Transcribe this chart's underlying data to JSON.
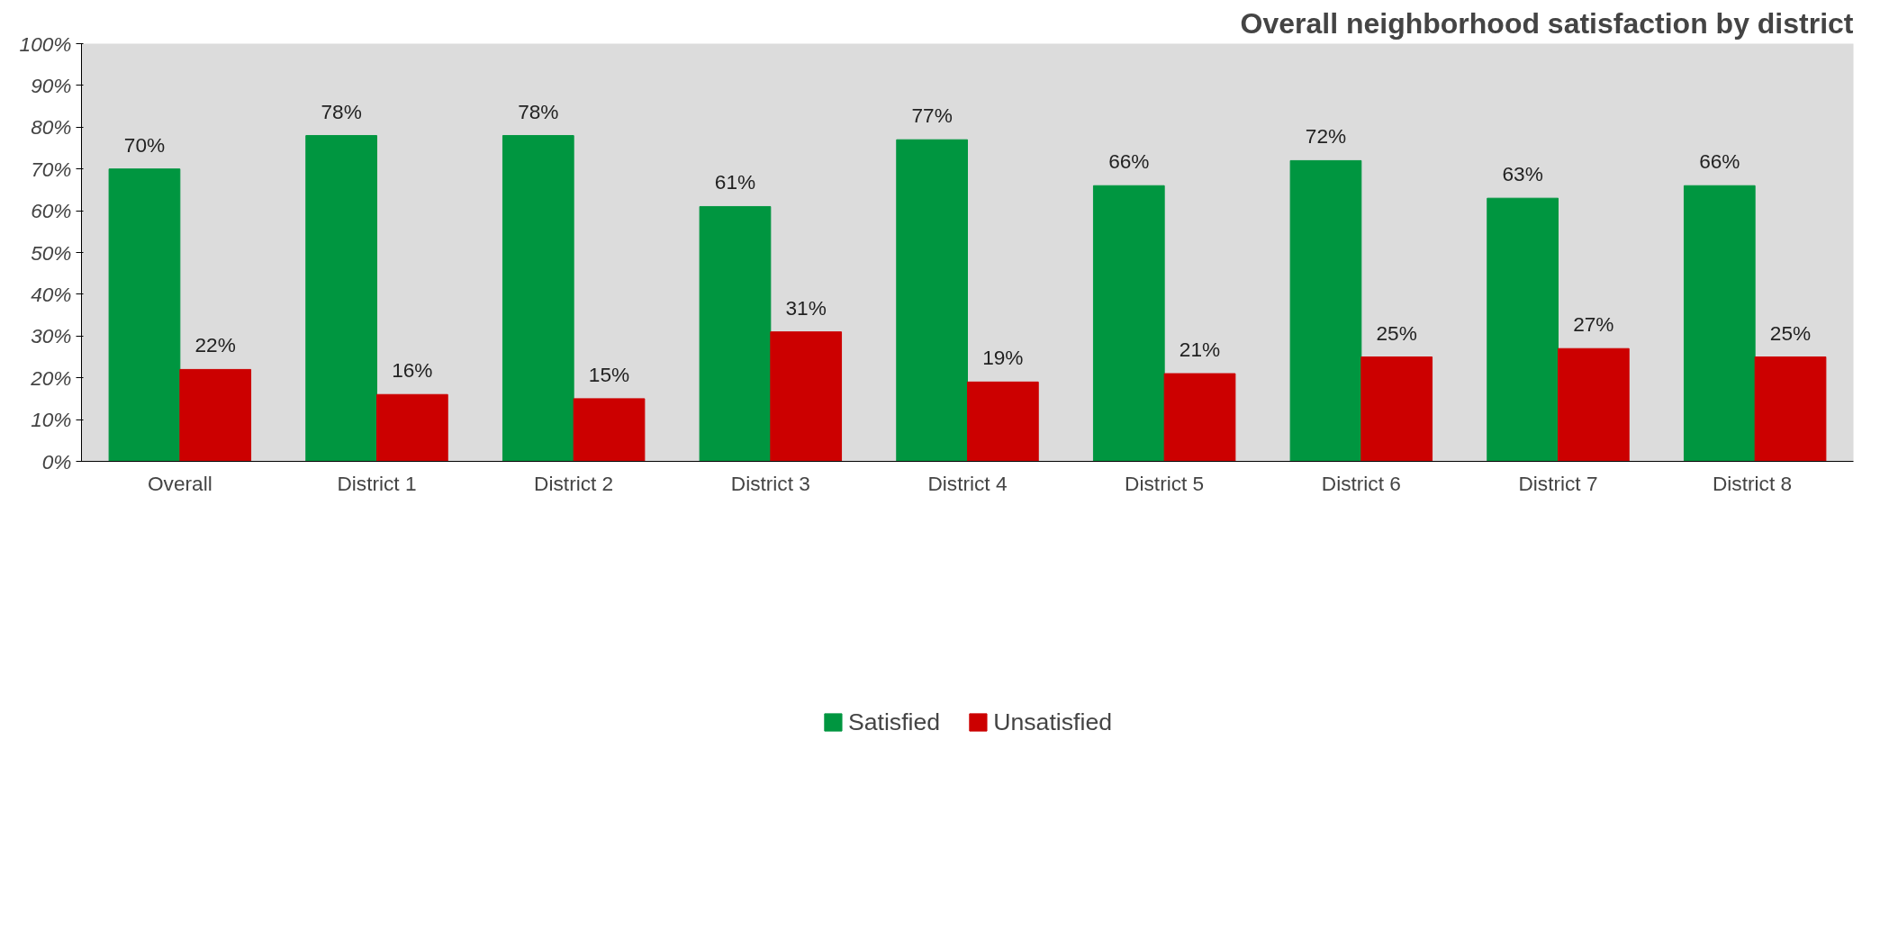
{
  "chart_data": {
    "type": "bar",
    "title": "Overall neighborhood satisfaction by district",
    "categories": [
      "Overall",
      "District 1",
      "District 2",
      "District 3",
      "District 4",
      "District 5",
      "District 6",
      "District 7",
      "District  8"
    ],
    "series": [
      {
        "name": "Satisfied",
        "color": "#009640",
        "values": [
          70,
          78,
          78,
          61,
          77,
          66,
          72,
          63,
          66
        ],
        "value_labels": [
          "70%",
          "78%",
          "78%",
          "61%",
          "77%",
          "66%",
          "72%",
          "63%",
          "66%"
        ]
      },
      {
        "name": "Unsatisfied",
        "color": "#cc0000",
        "values": [
          22,
          16,
          15,
          31,
          19,
          21,
          25,
          27,
          25
        ],
        "value_labels": [
          "22%",
          "16%",
          "15%",
          "31%",
          "19%",
          "21%",
          "25%",
          "27%",
          "25%"
        ]
      }
    ],
    "ylim": [
      0,
      100
    ],
    "yticks": [
      {
        "value": 0,
        "label": "0%"
      },
      {
        "value": 10,
        "label": "10%"
      },
      {
        "value": 20,
        "label": "20%"
      },
      {
        "value": 30,
        "label": "30%"
      },
      {
        "value": 40,
        "label": "40%"
      },
      {
        "value": 50,
        "label": "50%"
      },
      {
        "value": 60,
        "label": "60%"
      },
      {
        "value": 70,
        "label": "70%"
      },
      {
        "value": 80,
        "label": "80%"
      },
      {
        "value": 90,
        "label": "90%"
      },
      {
        "value": 100,
        "label": "100%"
      }
    ],
    "grid": false,
    "legend": "bottom"
  }
}
